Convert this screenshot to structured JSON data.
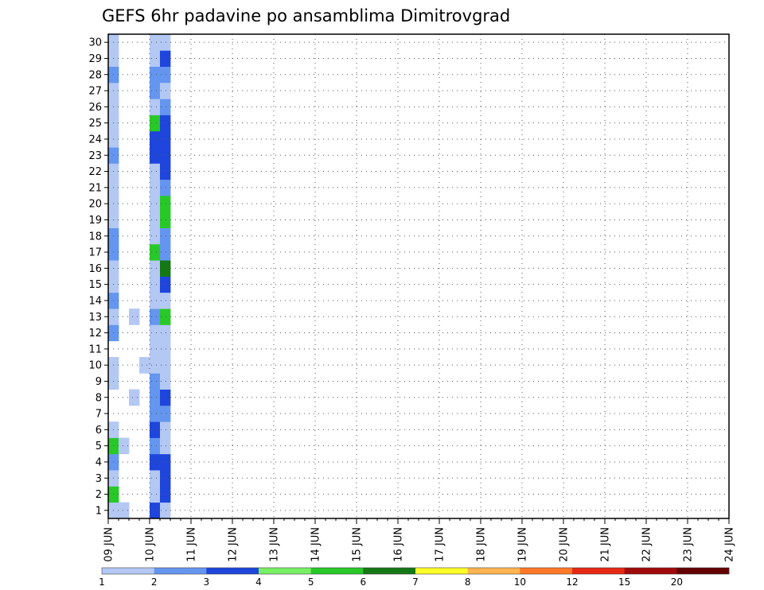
{
  "chart_data": {
    "type": "heatmap",
    "title": "GEFS 6hr padavine po ansamblima Dimitrovgrad",
    "xlabel": "",
    "ylabel": "",
    "x_tick_labels": [
      "09 JUN",
      "10 JUN",
      "11 JUN",
      "12 JUN",
      "13 JUN",
      "14 JUN",
      "15 JUN",
      "16 JUN",
      "17 JUN",
      "18 JUN",
      "19 JUN",
      "20 JUN",
      "21 JUN",
      "22 JUN",
      "23 JUN",
      "24 JUN"
    ],
    "y_tick_labels": [
      "1",
      "2",
      "3",
      "4",
      "5",
      "6",
      "7",
      "8",
      "9",
      "10",
      "11",
      "12",
      "13",
      "14",
      "15",
      "16",
      "17",
      "18",
      "19",
      "20",
      "21",
      "22",
      "23",
      "24",
      "25",
      "26",
      "27",
      "28",
      "29",
      "30"
    ],
    "time_steps_per_day": 4,
    "members": 30,
    "grid": "dotted",
    "legend": {
      "position": "bottom",
      "thresholds": [
        "1",
        "2",
        "3",
        "4",
        "5",
        "6",
        "7",
        "8",
        "10",
        "12",
        "15",
        "20"
      ],
      "colors": [
        "#b4c8f4",
        "#6496f0",
        "#1e46dc",
        "#78f064",
        "#28c828",
        "#147814",
        "#ffff28",
        "#ffb450",
        "#ff7828",
        "#e62814",
        "#a00a0a",
        "#640000"
      ]
    },
    "values": {
      "1": [
        [
          1,
          1
        ],
        [
          2,
          5
        ],
        [
          3,
          1
        ],
        [
          4,
          2
        ],
        [
          5,
          5
        ],
        [
          6,
          1
        ],
        [
          9,
          1
        ],
        [
          10,
          1
        ],
        [
          12,
          2
        ],
        [
          13,
          1
        ],
        [
          14,
          2
        ],
        [
          15,
          1
        ],
        [
          16,
          1
        ],
        [
          17,
          2
        ],
        [
          18,
          2
        ],
        [
          19,
          1
        ],
        [
          20,
          1
        ],
        [
          21,
          1
        ],
        [
          22,
          1
        ],
        [
          23,
          2
        ],
        [
          24,
          1
        ],
        [
          25,
          1
        ],
        [
          26,
          1
        ],
        [
          27,
          1
        ],
        [
          28,
          2
        ],
        [
          29,
          1
        ],
        [
          30,
          1
        ]
      ],
      "2": [
        [
          1,
          1
        ],
        [
          5,
          1
        ]
      ],
      "3": [
        [
          8,
          1
        ],
        [
          13,
          1
        ]
      ],
      "4": [
        [
          10,
          1
        ]
      ],
      "5": [
        [
          1,
          3
        ],
        [
          2,
          1
        ],
        [
          3,
          1
        ],
        [
          4,
          3
        ],
        [
          5,
          2
        ],
        [
          6,
          3
        ],
        [
          7,
          2
        ],
        [
          8,
          2
        ],
        [
          9,
          2
        ],
        [
          10,
          1
        ],
        [
          11,
          1
        ],
        [
          12,
          1
        ],
        [
          13,
          2
        ],
        [
          14,
          1
        ],
        [
          15,
          1
        ],
        [
          16,
          1
        ],
        [
          17,
          5
        ],
        [
          18,
          1
        ],
        [
          19,
          1
        ],
        [
          20,
          1
        ],
        [
          21,
          1
        ],
        [
          22,
          1
        ],
        [
          23,
          3
        ],
        [
          24,
          3
        ],
        [
          25,
          5
        ],
        [
          26,
          1
        ],
        [
          27,
          2
        ],
        [
          28,
          2
        ],
        [
          29,
          1
        ],
        [
          30,
          1
        ]
      ],
      "6": [
        [
          1,
          1
        ],
        [
          2,
          3
        ],
        [
          3,
          3
        ],
        [
          4,
          3
        ],
        [
          5,
          1
        ],
        [
          6,
          1
        ],
        [
          7,
          2
        ],
        [
          8,
          3
        ],
        [
          9,
          1
        ],
        [
          10,
          1
        ],
        [
          11,
          1
        ],
        [
          12,
          1
        ],
        [
          13,
          5
        ],
        [
          14,
          1
        ],
        [
          15,
          3
        ],
        [
          16,
          6
        ],
        [
          17,
          2
        ],
        [
          18,
          2
        ],
        [
          19,
          5
        ],
        [
          20,
          5
        ],
        [
          21,
          2
        ],
        [
          22,
          3
        ],
        [
          23,
          3
        ],
        [
          24,
          3
        ],
        [
          25,
          3
        ],
        [
          26,
          2
        ],
        [
          27,
          1
        ],
        [
          28,
          2
        ],
        [
          29,
          3
        ],
        [
          30,
          1
        ]
      ]
    },
    "note_values": "values maps time-step index (1-based, 6 h each) to [member, category] pairs; category indexes the legend thresholds (1 = 1-2 mm)"
  }
}
